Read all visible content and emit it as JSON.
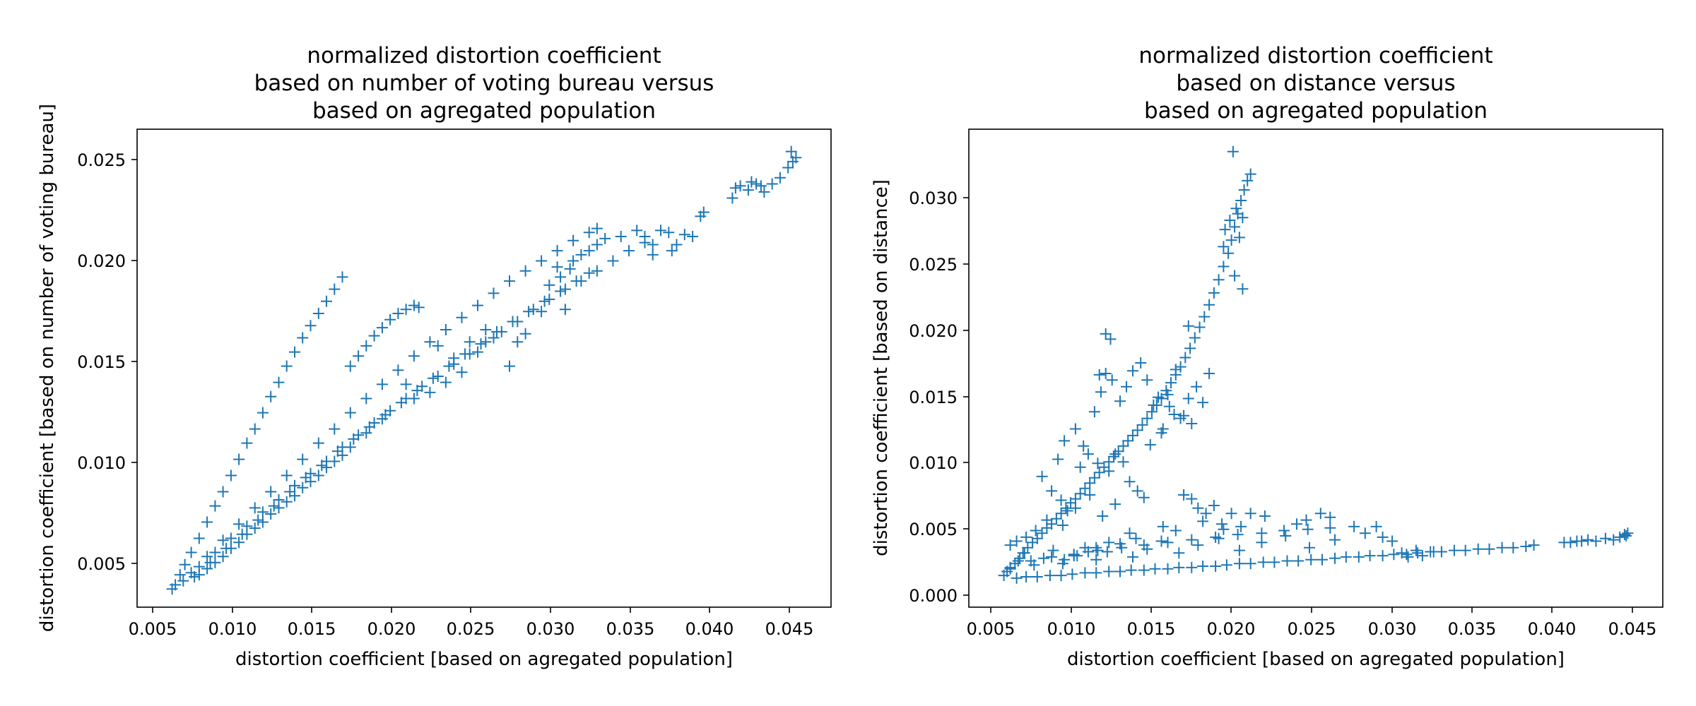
{
  "chart_data": [
    {
      "type": "scatter",
      "marker": "+",
      "color": "#1f77b4",
      "title": [
        "normalized distortion coefficient",
        "based on number of voting bureau versus",
        "based on agregated population"
      ],
      "xlabel": "distortion coefficient [based on agregated population]",
      "ylabel": "distortion coefficient [based on number of voting bureau]",
      "xlim": [
        0.0036,
        0.0472
      ],
      "ylim": [
        0.0029,
        0.0265
      ],
      "xticks": [
        "0.005",
        "0.010",
        "0.015",
        "0.020",
        "0.025",
        "0.030",
        "0.035",
        "0.040",
        "0.045"
      ],
      "yticks": [
        "0.005",
        "0.010",
        "0.015",
        "0.020",
        "0.025"
      ],
      "grid": false,
      "series": [
        {
          "x": [
            0.0058,
            0.006,
            0.0063,
            0.0066,
            0.007,
            0.0075,
            0.008,
            0.0085,
            0.009,
            0.0095,
            0.01,
            0.0105,
            0.011,
            0.0115,
            0.012,
            0.0125,
            0.013,
            0.0135,
            0.014,
            0.0145,
            0.015,
            0.0155,
            0.016,
            0.0165,
            0.017,
            0.0175,
            0.018,
            0.0185,
            0.019,
            0.0195,
            0.02,
            0.0205,
            0.021,
            0.0213,
            0.0065,
            0.0075,
            0.0085,
            0.0095,
            0.0105,
            0.0115,
            0.0125,
            0.0135,
            0.0145,
            0.0155,
            0.0165,
            0.0175,
            0.0185,
            0.0195,
            0.0205,
            0.0215,
            0.0225,
            0.0235,
            0.0245,
            0.0255,
            0.0265,
            0.0275,
            0.0285,
            0.0295,
            0.0305,
            0.0315,
            0.0325,
            0.0335,
            0.0345,
            0.0355,
            0.007,
            0.008,
            0.009,
            0.01,
            0.011,
            0.012,
            0.013,
            0.014,
            0.015,
            0.016,
            0.017,
            0.018,
            0.019,
            0.02,
            0.021,
            0.022,
            0.023,
            0.024,
            0.025,
            0.026,
            0.027,
            0.028,
            0.029,
            0.03,
            0.031,
            0.032,
            0.0325,
            0.0072,
            0.0082,
            0.0092,
            0.0102,
            0.0112,
            0.0122,
            0.0132,
            0.0142,
            0.0152,
            0.0162,
            0.0172,
            0.0182,
            0.0192,
            0.0202,
            0.0212,
            0.0222,
            0.0232,
            0.0242,
            0.0252,
            0.0262,
            0.0272,
            0.0282,
            0.0292,
            0.0302,
            0.0312,
            0.032,
            0.0295,
            0.03,
            0.031,
            0.0315,
            0.0308,
            0.032,
            0.0325,
            0.033,
            0.034,
            0.035,
            0.0355,
            0.036,
            0.0365,
            0.037,
            0.0372,
            0.038,
            0.0385,
            0.039,
            0.0392,
            0.0375,
            0.036,
            0.0305,
            0.0302,
            0.029,
            0.028,
            0.027,
            0.0275,
            0.026,
            0.025,
            0.0245,
            0.0255,
            0.024,
            0.023,
            0.022,
            0.0235,
            0.0225,
            0.021,
            0.0205,
            0.019,
            0.018,
            0.017,
            0.0165,
            0.016,
            0.0155,
            0.015,
            0.0145,
            0.014,
            0.0135,
            0.013,
            0.0125,
            0.012,
            0.0115,
            0.011,
            0.0105,
            0.01,
            0.0095,
            0.009,
            0.0085,
            0.008,
            0.0075,
            0.041,
            0.0415,
            0.042,
            0.0425,
            0.043,
            0.0435,
            0.044,
            0.0445,
            0.0448,
            0.045,
            0.0447,
            0.0422,
            0.0412,
            0.0428
          ],
          "y": [
            0.0038,
            0.004,
            0.0045,
            0.005,
            0.0056,
            0.0063,
            0.0071,
            0.0079,
            0.0086,
            0.0094,
            0.0102,
            0.011,
            0.0117,
            0.0125,
            0.0133,
            0.014,
            0.0148,
            0.0155,
            0.0162,
            0.0168,
            0.0174,
            0.018,
            0.0186,
            0.0192,
            0.0148,
            0.0153,
            0.0158,
            0.0163,
            0.0167,
            0.0171,
            0.0174,
            0.0176,
            0.0178,
            0.0177,
            0.0042,
            0.0049,
            0.0056,
            0.0063,
            0.0069,
            0.0076,
            0.0082,
            0.0089,
            0.0095,
            0.0101,
            0.0108,
            0.0114,
            0.012,
            0.0126,
            0.0132,
            0.0138,
            0.0143,
            0.0149,
            0.0154,
            0.016,
            0.0165,
            0.017,
            0.0176,
            0.0181,
            0.0186,
            0.019,
            0.0195,
            0.02,
            0.0205,
            0.0209,
            0.0046,
            0.0054,
            0.0062,
            0.007,
            0.0078,
            0.0086,
            0.0094,
            0.0102,
            0.011,
            0.0117,
            0.0125,
            0.0132,
            0.0139,
            0.0146,
            0.0153,
            0.016,
            0.0166,
            0.0172,
            0.0178,
            0.0184,
            0.019,
            0.0195,
            0.02,
            0.0205,
            0.021,
            0.0214,
            0.0216,
            0.0044,
            0.0051,
            0.0058,
            0.0065,
            0.0072,
            0.0079,
            0.0086,
            0.0093,
            0.0099,
            0.0106,
            0.0112,
            0.0118,
            0.0124,
            0.013,
            0.0136,
            0.0142,
            0.0148,
            0.0154,
            0.0159,
            0.0165,
            0.017,
            0.0175,
            0.018,
            0.0185,
            0.019,
            0.0194,
            0.0188,
            0.0197,
            0.02,
            0.0203,
            0.0196,
            0.0205,
            0.0208,
            0.0211,
            0.0212,
            0.0215,
            0.0212,
            0.0208,
            0.0215,
            0.0214,
            0.0205,
            0.0213,
            0.0212,
            0.0222,
            0.0224,
            0.0208,
            0.0203,
            0.0176,
            0.0192,
            0.0175,
            0.0164,
            0.0148,
            0.016,
            0.0162,
            0.0155,
            0.016,
            0.0166,
            0.0145,
            0.014,
            0.0135,
            0.0152,
            0.0158,
            0.0132,
            0.0139,
            0.0122,
            0.0115,
            0.0108,
            0.0104,
            0.0101,
            0.0098,
            0.0094,
            0.0091,
            0.0088,
            0.0084,
            0.0081,
            0.0078,
            0.0075,
            0.0071,
            0.0068,
            0.0065,
            0.0061,
            0.0058,
            0.0054,
            0.0051,
            0.0048,
            0.0045,
            0.0231,
            0.0237,
            0.0235,
            0.0238,
            0.0234,
            0.0238,
            0.0241,
            0.0246,
            0.0249,
            0.0251,
            0.0254,
            0.0239,
            0.0236,
            0.0237
          ]
        }
      ]
    },
    {
      "type": "scatter",
      "marker": "+",
      "color": "#1f77b4",
      "title": [
        "normalized distortion coefficient",
        "based on distance versus",
        "based on agregated population"
      ],
      "xlabel": "distortion coefficient [based on agregated population]",
      "ylabel": "distortion coefficient [based on distance]",
      "xlim": [
        0.0036,
        0.0472
      ],
      "ylim": [
        -0.0014,
        0.0348
      ],
      "xticks": [
        "0.005",
        "0.010",
        "0.015",
        "0.020",
        "0.025",
        "0.030",
        "0.035",
        "0.040",
        "0.045"
      ],
      "yticks": [
        "0.000",
        "0.005",
        "0.010",
        "0.015",
        "0.020",
        "0.025",
        "0.030"
      ],
      "grid": false,
      "series": [
        {
          "x": [
            0.0058,
            0.006,
            0.0062,
            0.0065,
            0.0068,
            0.007,
            0.0073,
            0.0076,
            0.0079,
            0.0082,
            0.0085,
            0.0088,
            0.0091,
            0.0094,
            0.0097,
            0.01,
            0.0103,
            0.0106,
            0.0109,
            0.0112,
            0.0115,
            0.0118,
            0.0121,
            0.0124,
            0.0127,
            0.013,
            0.0133,
            0.0136,
            0.0139,
            0.0142,
            0.0145,
            0.0148,
            0.0151,
            0.0154,
            0.0157,
            0.016,
            0.0163,
            0.0166,
            0.0169,
            0.0172,
            0.0175,
            0.0178,
            0.0181,
            0.0184,
            0.0187,
            0.019,
            0.0193,
            0.0196,
            0.0199,
            0.0201,
            0.0203,
            0.0205,
            0.0207,
            0.0209,
            0.0211,
            0.02,
            0.0204,
            0.0206,
            0.0197,
            0.0208,
            0.0213,
            0.0202,
            0.0196,
            0.0203,
            0.0208,
            0.0092,
            0.0096,
            0.0103,
            0.0108,
            0.0115,
            0.0119,
            0.0122,
            0.0126,
            0.0131,
            0.0135,
            0.0139,
            0.0144,
            0.0148,
            0.0152,
            0.0157,
            0.0161,
            0.0166,
            0.0171,
            0.0176,
            0.0082,
            0.0088,
            0.0094,
            0.0098,
            0.0106,
            0.0111,
            0.0117,
            0.0124,
            0.0128,
            0.0133,
            0.0122,
            0.0125,
            0.0118,
            0.0158,
            0.0165,
            0.0174,
            0.0179,
            0.0169,
            0.0155,
            0.0162,
            0.015,
            0.0183,
            0.0187,
            0.0174,
            0.0095,
            0.0103,
            0.0112,
            0.012,
            0.0128,
            0.0085,
            0.0078,
            0.0072,
            0.0066,
            0.0062,
            0.0137,
            0.0142,
            0.0146,
            0.0171,
            0.0176,
            0.018,
            0.0185,
            0.019,
            0.0195,
            0.0201,
            0.0207,
            0.0066,
            0.0072,
            0.0079,
            0.0087,
            0.0094,
            0.0101,
            0.0109,
            0.0116,
            0.0124,
            0.0131,
            0.0138,
            0.0146,
            0.0153,
            0.0161,
            0.0168,
            0.0176,
            0.0183,
            0.0191,
            0.0198,
            0.0206,
            0.0213,
            0.0221,
            0.0228,
            0.0236,
            0.0243,
            0.0251,
            0.0258,
            0.0266,
            0.0273,
            0.0281,
            0.0288,
            0.0296,
            0.0303,
            0.0311,
            0.0318,
            0.0326,
            0.0333,
            0.0341,
            0.0348,
            0.0356,
            0.0363,
            0.0371,
            0.0378,
            0.0386,
            0.0391,
            0.0075,
            0.0088,
            0.0102,
            0.0117,
            0.0132,
            0.0146,
            0.0161,
            0.0176,
            0.0191,
            0.0205,
            0.022,
            0.0234,
            0.0249,
            0.0263,
            0.0278,
            0.0292,
            0.0285,
            0.0296,
            0.0302,
            0.0248,
            0.0257,
            0.0263,
            0.0242,
            0.0222,
            0.0213,
            0.0196,
            0.0183,
            0.0166,
            0.0158,
            0.0141,
            0.0137,
            0.0124,
            0.0116,
            0.0111,
            0.0104,
            0.0096,
            0.0308,
            0.0317,
            0.0321,
            0.0312,
            0.0328,
            0.0062,
            0.0067,
            0.0071,
            0.0077,
            0.0083,
            0.0089,
            0.0095,
            0.0102,
            0.0109,
            0.0116,
            0.0123,
            0.0131,
            0.0139,
            0.0148,
            0.0157,
            0.0168,
            0.018,
            0.0193,
            0.0206,
            0.022,
            0.0235,
            0.025,
            0.0266,
            0.041,
            0.0418,
            0.0425,
            0.043,
            0.0436,
            0.0441,
            0.0445,
            0.0448,
            0.045,
            0.0449,
            0.0421,
            0.0414
          ],
          "y": [
            0.001,
            0.0013,
            0.0016,
            0.0019,
            0.0023,
            0.0027,
            0.0031,
            0.0035,
            0.0038,
            0.0042,
            0.0046,
            0.0049,
            0.0053,
            0.0057,
            0.0061,
            0.0065,
            0.0068,
            0.0072,
            0.0076,
            0.008,
            0.0084,
            0.0088,
            0.0092,
            0.0096,
            0.01,
            0.0104,
            0.0108,
            0.0112,
            0.0116,
            0.012,
            0.0124,
            0.0129,
            0.0134,
            0.0139,
            0.0144,
            0.015,
            0.0156,
            0.0162,
            0.0168,
            0.0175,
            0.0182,
            0.019,
            0.0198,
            0.0206,
            0.0215,
            0.0224,
            0.0234,
            0.0244,
            0.0254,
            0.0264,
            0.0274,
            0.0284,
            0.0294,
            0.0302,
            0.0309,
            0.0279,
            0.0288,
            0.0266,
            0.0272,
            0.0281,
            0.0314,
            0.0331,
            0.0259,
            0.0237,
            0.0227,
            0.0098,
            0.0112,
            0.0121,
            0.0108,
            0.0134,
            0.0149,
            0.0163,
            0.0158,
            0.0142,
            0.0153,
            0.0165,
            0.0171,
            0.0158,
            0.0139,
            0.0118,
            0.0147,
            0.0166,
            0.0131,
            0.0125,
            0.0085,
            0.0074,
            0.0067,
            0.0059,
            0.0092,
            0.0102,
            0.0095,
            0.0089,
            0.0102,
            0.0096,
            0.0193,
            0.0189,
            0.0162,
            0.0121,
            0.0132,
            0.0144,
            0.0153,
            0.0129,
            0.0145,
            0.0138,
            0.0109,
            0.0141,
            0.0163,
            0.0199,
            0.0048,
            0.0061,
            0.0071,
            0.0055,
            0.0064,
            0.0052,
            0.0044,
            0.0039,
            0.0036,
            0.0033,
            0.0081,
            0.0074,
            0.0069,
            0.0071,
            0.0068,
            0.0061,
            0.0057,
            0.0063,
            0.0049,
            0.0057,
            0.0047,
            0.0008,
            0.0009,
            0.0009,
            0.001,
            0.001,
            0.0011,
            0.0012,
            0.0012,
            0.0013,
            0.0013,
            0.0014,
            0.0014,
            0.0015,
            0.0015,
            0.0016,
            0.0016,
            0.0017,
            0.0017,
            0.0018,
            0.0019,
            0.0019,
            0.002,
            0.002,
            0.0021,
            0.0021,
            0.0022,
            0.0022,
            0.0023,
            0.0024,
            0.0024,
            0.0025,
            0.0025,
            0.0026,
            0.0026,
            0.0027,
            0.0028,
            0.0028,
            0.0029,
            0.0029,
            0.003,
            0.003,
            0.0031,
            0.0031,
            0.0032,
            0.0033,
            0.0021,
            0.0024,
            0.0026,
            0.0029,
            0.0031,
            0.0033,
            0.0035,
            0.0037,
            0.0039,
            0.0041,
            0.0042,
            0.0044,
            0.0045,
            0.0046,
            0.0047,
            0.0047,
            0.0042,
            0.0039,
            0.0036,
            0.0052,
            0.0057,
            0.0054,
            0.0049,
            0.0055,
            0.0057,
            0.0045,
            0.0051,
            0.0044,
            0.0047,
            0.0038,
            0.0042,
            0.0035,
            0.0031,
            0.0028,
            0.0025,
            0.0022,
            0.0027,
            0.0029,
            0.0025,
            0.0024,
            0.0028,
            0.0015,
            0.0021,
            0.0027,
            0.0018,
            0.0023,
            0.0029,
            0.0019,
            0.0025,
            0.0031,
            0.0022,
            0.0028,
            0.0034,
            0.0024,
            0.003,
            0.0036,
            0.0027,
            0.0033,
            0.0038,
            0.0029,
            0.0035,
            0.004,
            0.0031,
            0.0037,
            0.0035,
            0.0036,
            0.0037,
            0.0036,
            0.0038,
            0.0037,
            0.0039,
            0.0041,
            0.0042,
            0.004,
            0.0036,
            0.0035
          ]
        }
      ]
    }
  ]
}
